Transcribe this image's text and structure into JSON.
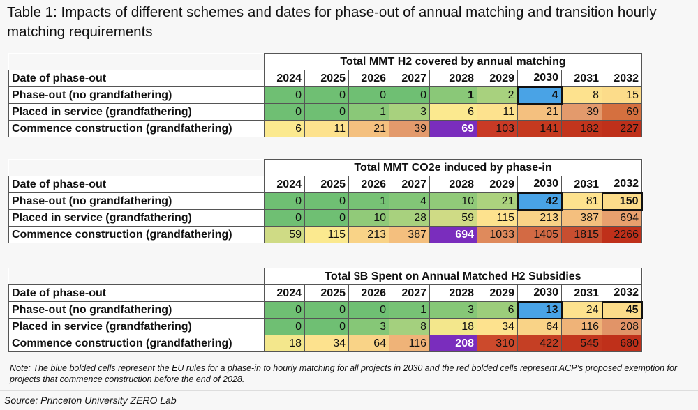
{
  "title": "Table 1: Impacts of different schemes and dates for phase-out of annual matching and transition hourly matching requirements",
  "years": [
    "2024",
    "2025",
    "2026",
    "2027",
    "2028",
    "2029",
    "2030",
    "2031",
    "2032"
  ],
  "row_header_label": "Date of phase-out",
  "tables": [
    {
      "caption": "Total MMT H2 covered by annual matching",
      "rows": [
        {
          "label": "Phase-out (no grandfathering)",
          "values": [
            "0",
            "0",
            "0",
            "0",
            "1",
            "2",
            "4",
            "8",
            "15"
          ],
          "colors": [
            "#6fbf73",
            "#6fbf73",
            "#6fbf73",
            "#6fbf73",
            "#8ac878",
            "#a8d17e",
            "#49a3e6",
            "#fde28e",
            "#fcdc8a"
          ]
        },
        {
          "label": "Placed in service (grandfathering)",
          "values": [
            "0",
            "0",
            "1",
            "3",
            "6",
            "11",
            "21",
            "39",
            "69"
          ],
          "colors": [
            "#6fbf73",
            "#6fbf73",
            "#8ac878",
            "#a8d17e",
            "#fbe98f",
            "#fde28e",
            "#f4c07f",
            "#e39a6c",
            "#d5703f"
          ]
        },
        {
          "label": "Commence construction (grandfathering)",
          "values": [
            "6",
            "11",
            "21",
            "39",
            "69",
            "103",
            "141",
            "182",
            "227"
          ],
          "colors": [
            "#fbe98f",
            "#fde28e",
            "#f4c07f",
            "#e39a6c",
            "#7a2dbd",
            "#c93a25",
            "#c5391f",
            "#c2351d",
            "#bf301a"
          ]
        }
      ]
    },
    {
      "caption": "Total MMT CO2e induced by phase-in",
      "rows": [
        {
          "label": "Phase-out (no grandfathering)",
          "values": [
            "0",
            "0",
            "1",
            "4",
            "10",
            "21",
            "42",
            "81",
            "150"
          ],
          "colors": [
            "#6fbf73",
            "#6fbf73",
            "#77c275",
            "#82c677",
            "#91ca79",
            "#acd27e",
            "#49a3e6",
            "#fde28e",
            "#fcdc8a"
          ]
        },
        {
          "label": "Placed in service (grandfathering)",
          "values": [
            "0",
            "0",
            "10",
            "28",
            "59",
            "115",
            "213",
            "387",
            "694"
          ],
          "colors": [
            "#6fbf73",
            "#6fbf73",
            "#91ca79",
            "#a8d17e",
            "#cfdb85",
            "#fde28e",
            "#f9d387",
            "#f4bf7e",
            "#e8a06e"
          ]
        },
        {
          "label": "Commence construction (grandfathering)",
          "values": [
            "59",
            "115",
            "213",
            "387",
            "694",
            "1033",
            "1405",
            "1815",
            "2266"
          ],
          "colors": [
            "#cfdb85",
            "#fbe98f",
            "#f9d387",
            "#f4bf7e",
            "#7a2dbd",
            "#df8a5c",
            "#d36a44",
            "#c84e30",
            "#bf301a"
          ]
        }
      ]
    },
    {
      "caption": "Total $B Spent on Annual Matched H2 Subsidies",
      "rows": [
        {
          "label": "Phase-out (no grandfathering)",
          "values": [
            "0",
            "0",
            "0",
            "1",
            "3",
            "6",
            "13",
            "24",
            "45"
          ],
          "colors": [
            "#6fbf73",
            "#6fbf73",
            "#6fbf73",
            "#77c275",
            "#86c777",
            "#9ccd7b",
            "#49a3e6",
            "#fde28e",
            "#fcdc8a"
          ]
        },
        {
          "label": "Placed in service (grandfathering)",
          "values": [
            "0",
            "0",
            "3",
            "8",
            "18",
            "34",
            "64",
            "116",
            "208"
          ],
          "colors": [
            "#6fbf73",
            "#6fbf73",
            "#86c777",
            "#a4d07e",
            "#f3e78c",
            "#fde28e",
            "#f9d387",
            "#efb378",
            "#e19468"
          ]
        },
        {
          "label": "Commence construction (grandfathering)",
          "values": [
            "18",
            "34",
            "64",
            "116",
            "208",
            "310",
            "422",
            "545",
            "680"
          ],
          "colors": [
            "#f3e78c",
            "#fde28e",
            "#f9d387",
            "#efb378",
            "#7a2dbd",
            "#cc4a2c",
            "#c53f24",
            "#c2361e",
            "#bf301a"
          ]
        }
      ]
    }
  ],
  "note": "Note: The blue bolded cells represent the EU rules for a phase-in to hourly matching for all projects in 2030 and the red bolded cells represent ACP’s proposed exemption for projects that commence construction before the end of 2028.",
  "source": "Source: Princeton University ZERO Lab"
}
